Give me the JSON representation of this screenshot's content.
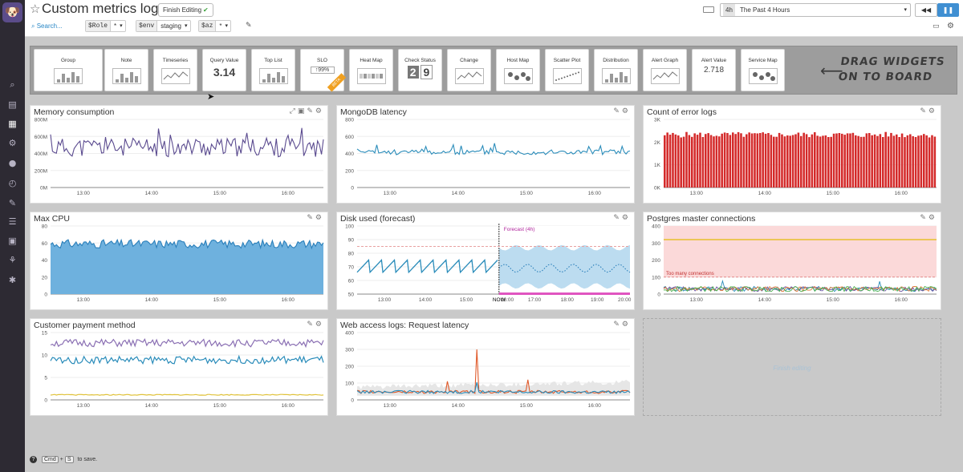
{
  "app": {
    "logo_glyph": "🐶"
  },
  "sidebar": {
    "items": [
      {
        "name": "binoculars-icon",
        "glyph": "⌕"
      },
      {
        "name": "dashboard-list-icon",
        "glyph": "▤"
      },
      {
        "name": "chart-icon",
        "glyph": "▦",
        "active": true
      },
      {
        "name": "infrastructure-icon",
        "glyph": "⚙"
      },
      {
        "name": "monitors-icon",
        "glyph": "●"
      },
      {
        "name": "apm-icon",
        "glyph": "◴"
      },
      {
        "name": "notebook-icon",
        "glyph": "✎"
      },
      {
        "name": "logs-icon",
        "glyph": "☰"
      },
      {
        "name": "security-icon",
        "glyph": "▣"
      },
      {
        "name": "synthetics-icon",
        "glyph": "⚘"
      },
      {
        "name": "integrations-icon",
        "glyph": "✱"
      }
    ]
  },
  "header": {
    "title": "Custom metrics logs",
    "finish_editing": "Finish Editing",
    "search": "Search...",
    "template_vars": [
      {
        "key": "$Role",
        "value": "*"
      },
      {
        "key": "$env",
        "value": "staging"
      },
      {
        "key": "$az",
        "value": "*"
      }
    ],
    "time_badge": "4h",
    "time_range": "The Past 4 Hours"
  },
  "tray": {
    "widgets": [
      "Group",
      "Note",
      "Timeseries",
      "Query Value",
      "Top List",
      "SLO",
      "Heat Map",
      "Check Status",
      "Change",
      "Host Map",
      "Scatter Plot",
      "Distribution",
      "Alert Graph",
      "Alert Value",
      "Service Map"
    ],
    "query_value_sample": "3.14",
    "slo_sample": "99%",
    "slo_ribbon": "BETA",
    "check_status_sample": "2",
    "check_status_sample2": "9",
    "alert_value_sample": "2.718",
    "drag_hint_line1": "DRAG WIDGETS",
    "drag_hint_line2": "ON TO BOARD"
  },
  "panels": [
    {
      "title": "Memory consumption",
      "chart_data": {
        "type": "line",
        "series": [
          {
            "color": "#5a4a8f"
          }
        ],
        "yticks": [
          "800M",
          "600M",
          "400M",
          "200M",
          "0M"
        ],
        "xticks": [
          "13:00",
          "14:00",
          "15:00",
          "16:00"
        ],
        "ylim": [
          0,
          800
        ],
        "approx_range": [
          250,
          700
        ]
      }
    },
    {
      "title": "MongoDB latency",
      "chart_data": {
        "type": "line",
        "series": [
          {
            "color": "#2a8cba"
          }
        ],
        "yticks": [
          "800",
          "600",
          "400",
          "200",
          "0"
        ],
        "xticks": [
          "13:00",
          "14:00",
          "15:00",
          "16:00"
        ],
        "ylim": [
          0,
          800
        ],
        "approx_range": [
          330,
          520
        ]
      }
    },
    {
      "title": "Count of error logs",
      "chart_data": {
        "type": "bar",
        "series": [
          {
            "color": "#d42a2a"
          }
        ],
        "yticks": [
          "3K",
          "2K",
          "1K",
          "0K"
        ],
        "xticks": [
          "13:00",
          "14:00",
          "15:00",
          "16:00"
        ],
        "ylim": [
          0,
          3000
        ],
        "approx_range": [
          2200,
          2400
        ]
      }
    },
    {
      "title": "Max CPU",
      "chart_data": {
        "type": "area",
        "series": [
          {
            "color": "#2a7fba",
            "fill": "#6eb1de"
          }
        ],
        "yticks": [
          "80",
          "60",
          "40",
          "20",
          "0"
        ],
        "xticks": [
          "13:00",
          "14:00",
          "15:00",
          "16:00"
        ],
        "ylim": [
          0,
          80
        ],
        "approx_range": [
          52,
          65
        ]
      }
    },
    {
      "title": "Disk used (forecast)",
      "chart_data": {
        "type": "line",
        "series": [
          {
            "color": "#2a8cba"
          }
        ],
        "yticks": [
          "100",
          "90",
          "80",
          "70",
          "60",
          "50"
        ],
        "xticks": [
          "13:00",
          "14:00",
          "15:00",
          "16:00",
          "NOW",
          "17:00",
          "18:00",
          "19:00",
          "20:00"
        ],
        "ylim": [
          50,
          100
        ],
        "forecast_label": "Forecast (4h)"
      }
    },
    {
      "title": "Postgres master connections",
      "chart_data": {
        "type": "line",
        "yticks": [
          "400",
          "300",
          "200",
          "100",
          "0"
        ],
        "xticks": [
          "13:00",
          "14:00",
          "15:00",
          "16:00"
        ],
        "ylim": [
          0,
          400
        ],
        "threshold": 320,
        "alert_threshold": 100,
        "alert_label": "Too many connections",
        "series": [
          {
            "color": "#e8c02c"
          },
          {
            "color": "#2a8cba"
          },
          {
            "color": "#6a4fa0"
          },
          {
            "color": "#e07b39"
          },
          {
            "color": "#4caf50"
          }
        ]
      }
    },
    {
      "title": "Customer payment method",
      "chart_data": {
        "type": "line",
        "yticks": [
          "15",
          "10",
          "5",
          "0"
        ],
        "xticks": [
          "13:00",
          "14:00",
          "15:00",
          "16:00"
        ],
        "ylim": [
          0,
          16
        ],
        "series": [
          {
            "color": "#8a6fb3",
            "approx": 13.5
          },
          {
            "color": "#2a8cba",
            "approx": 9.5
          },
          {
            "color": "#e0c23a",
            "approx": 1.2
          }
        ]
      }
    },
    {
      "title": "Web access logs: Request latency",
      "chart_data": {
        "type": "line",
        "yticks": [
          "400",
          "300",
          "200",
          "100",
          "0"
        ],
        "xticks": [
          "13:00",
          "14:00",
          "15:00",
          "16:00"
        ],
        "ylim": [
          0,
          400
        ],
        "series": [
          {
            "color": "#2a8cba",
            "approx": 45
          },
          {
            "color": "#e05a2a"
          }
        ],
        "spikes": [
          {
            "x": "14:10",
            "y": 110
          },
          {
            "x": "15:00",
            "y": 300
          },
          {
            "x": "16:00",
            "y": 120
          }
        ]
      }
    }
  ],
  "placeholder": "Finish editing",
  "footer": {
    "key1": "Cmd",
    "plus": "+",
    "key2": "S",
    "suffix": "to save."
  }
}
